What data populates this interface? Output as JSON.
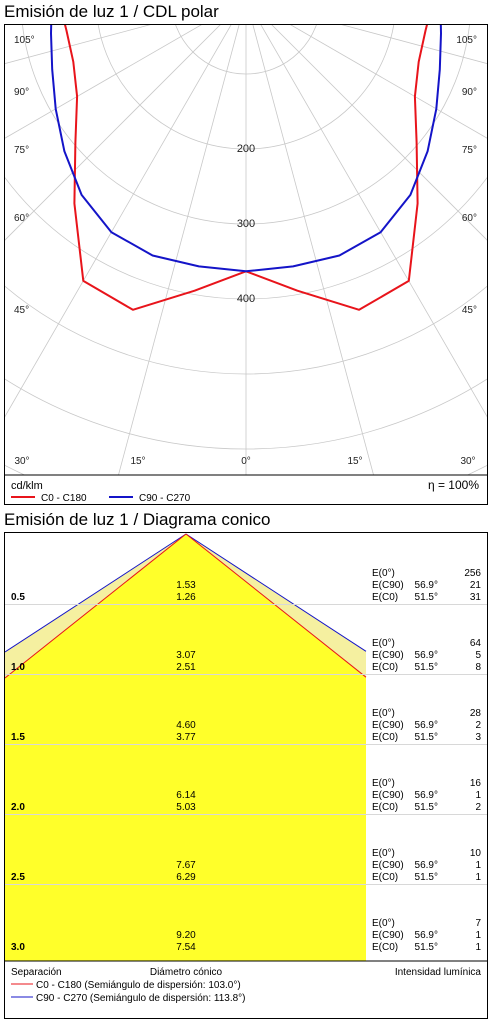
{
  "polar": {
    "title": "Emisión de luz 1 / CDL polar",
    "unit_label": "cd/klm",
    "efficiency_label": "η = 100%",
    "legend": [
      {
        "label": "C0 - C180",
        "color": "#e8141b"
      },
      {
        "label": "C90 - C270",
        "color": "#1414c8"
      }
    ]
  },
  "cone": {
    "title": "Emisión de luz 1 / Diagrama conico",
    "footer": {
      "col1": "Separación",
      "col2": "Diámetro cónico",
      "col3": "Intensidad lumínica",
      "legend": [
        {
          "label": "C0 - C180 (Semiángulo de dispersión: 103.0°)",
          "color": "#e8141b"
        },
        {
          "label": "C90 - C270 (Semiángulo de dispersión: 113.8°)",
          "color": "#1414c8"
        }
      ]
    }
  },
  "chart_data": [
    {
      "type": "polar",
      "title": "Emisión de luz 1 / CDL polar",
      "unit": "cd/klm",
      "radial_ticks": [
        200,
        300,
        400
      ],
      "radial_max": 500,
      "angle_labels_left": [
        "105°",
        "90°",
        "75°",
        "60°",
        "45°"
      ],
      "angle_labels_right": [
        "105°",
        "90°",
        "75°",
        "60°",
        "45°"
      ],
      "angle_labels_bottom": [
        "30°",
        "15°",
        "0°",
        "15°",
        "30°"
      ],
      "efficiency": "η = 100%",
      "series": [
        {
          "name": "C0 - C180",
          "color": "#e8141b",
          "angles": [
            0,
            10,
            20,
            30,
            40,
            50,
            60,
            70,
            80,
            90,
            100,
            110,
            120,
            130,
            140,
            150,
            160,
            170,
            180
          ],
          "values": [
            363,
            395,
            441,
            434,
            356,
            297,
            260,
            245,
            243,
            250,
            258,
            275,
            302,
            330,
            359,
            373,
            372,
            368,
            365
          ]
        },
        {
          "name": "C90 - C270",
          "color": "#1414c8",
          "angles": [
            0,
            10,
            20,
            30,
            40,
            50,
            60,
            70,
            80,
            90,
            100,
            110,
            120,
            130,
            140,
            150,
            160,
            170,
            180
          ],
          "values": [
            363,
            362,
            364,
            359,
            341,
            316,
            293,
            275,
            264,
            259,
            260,
            266,
            281,
            304,
            332,
            358,
            372,
            370,
            365
          ]
        }
      ]
    },
    {
      "type": "table",
      "title": "Emisión de luz 1 / Diagrama conico",
      "rows": [
        {
          "separation": "0.5",
          "d_c90": "1.53",
          "d_c0": "1.26",
          "e0": "256",
          "ec90_angle": "56.9°",
          "ec90": "21",
          "ec0_angle": "51.5°",
          "ec0": "31"
        },
        {
          "separation": "1.0",
          "d_c90": "3.07",
          "d_c0": "2.51",
          "e0": "64",
          "ec90_angle": "56.9°",
          "ec90": "5",
          "ec0_angle": "51.5°",
          "ec0": "8"
        },
        {
          "separation": "1.5",
          "d_c90": "4.60",
          "d_c0": "3.77",
          "e0": "28",
          "ec90_angle": "56.9°",
          "ec90": "2",
          "ec0_angle": "51.5°",
          "ec0": "3"
        },
        {
          "separation": "2.0",
          "d_c90": "6.14",
          "d_c0": "5.03",
          "e0": "16",
          "ec90_angle": "56.9°",
          "ec90": "1",
          "ec0_angle": "51.5°",
          "ec0": "2"
        },
        {
          "separation": "2.5",
          "d_c90": "7.67",
          "d_c0": "6.29",
          "e0": "10",
          "ec90_angle": "56.9°",
          "ec90": "1",
          "ec0_angle": "51.5°",
          "ec0": "1"
        },
        {
          "separation": "3.0",
          "d_c90": "9.20",
          "d_c0": "7.54",
          "e0": "7",
          "ec90_angle": "56.9°",
          "ec90": "1",
          "ec0_angle": "51.5°",
          "ec0": "1"
        }
      ],
      "e_labels": {
        "e0": "E(0°)",
        "ec90": "E(C90)",
        "ec0": "E(C0)"
      },
      "half_angle_c0_c180": 103.0,
      "half_angle_c90_c270": 113.8
    }
  ]
}
